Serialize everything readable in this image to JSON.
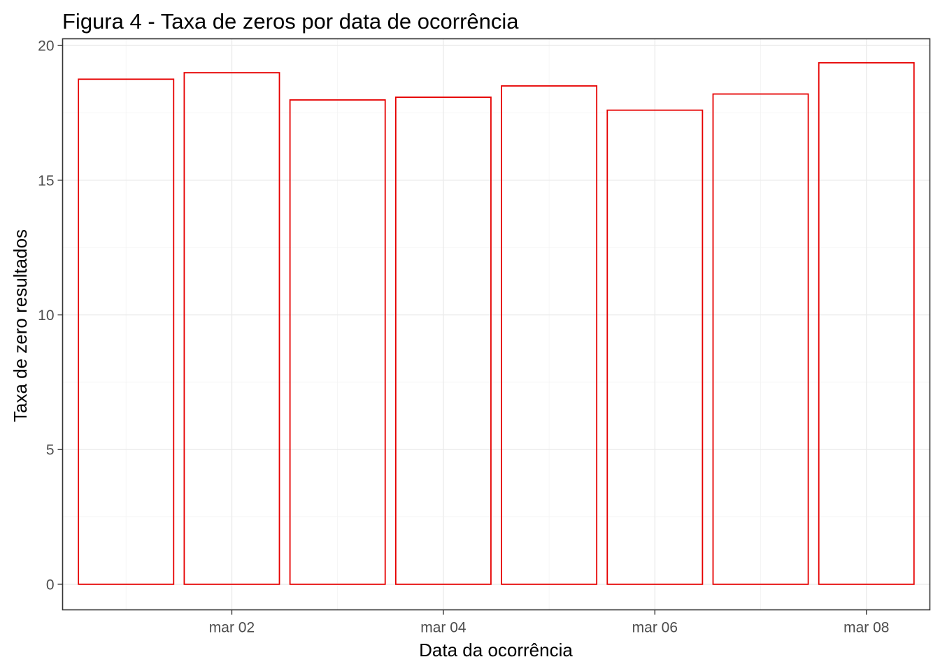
{
  "chart_data": {
    "type": "bar",
    "title": "Figura 4 - Taxa de zeros por data de ocorrência",
    "xlabel": "Data da ocorrência",
    "ylabel": "Taxa de zero resultados",
    "categories": [
      "mar 01",
      "mar 02",
      "mar 03",
      "mar 04",
      "mar 05",
      "mar 06",
      "mar 07",
      "mar 08"
    ],
    "values": [
      18.75,
      18.99,
      17.98,
      18.08,
      18.5,
      17.6,
      18.2,
      19.36
    ],
    "x_tick_labels": [
      "mar 02",
      "mar 04",
      "mar 06",
      "mar 08"
    ],
    "y_tick_labels": [
      "0",
      "5",
      "10",
      "15",
      "20"
    ],
    "ylim": [
      -0.95,
      20.25
    ],
    "bar_outline_color": "#e60000",
    "bar_fill": "none",
    "grid": true,
    "legend": "none",
    "theme": "bw"
  }
}
